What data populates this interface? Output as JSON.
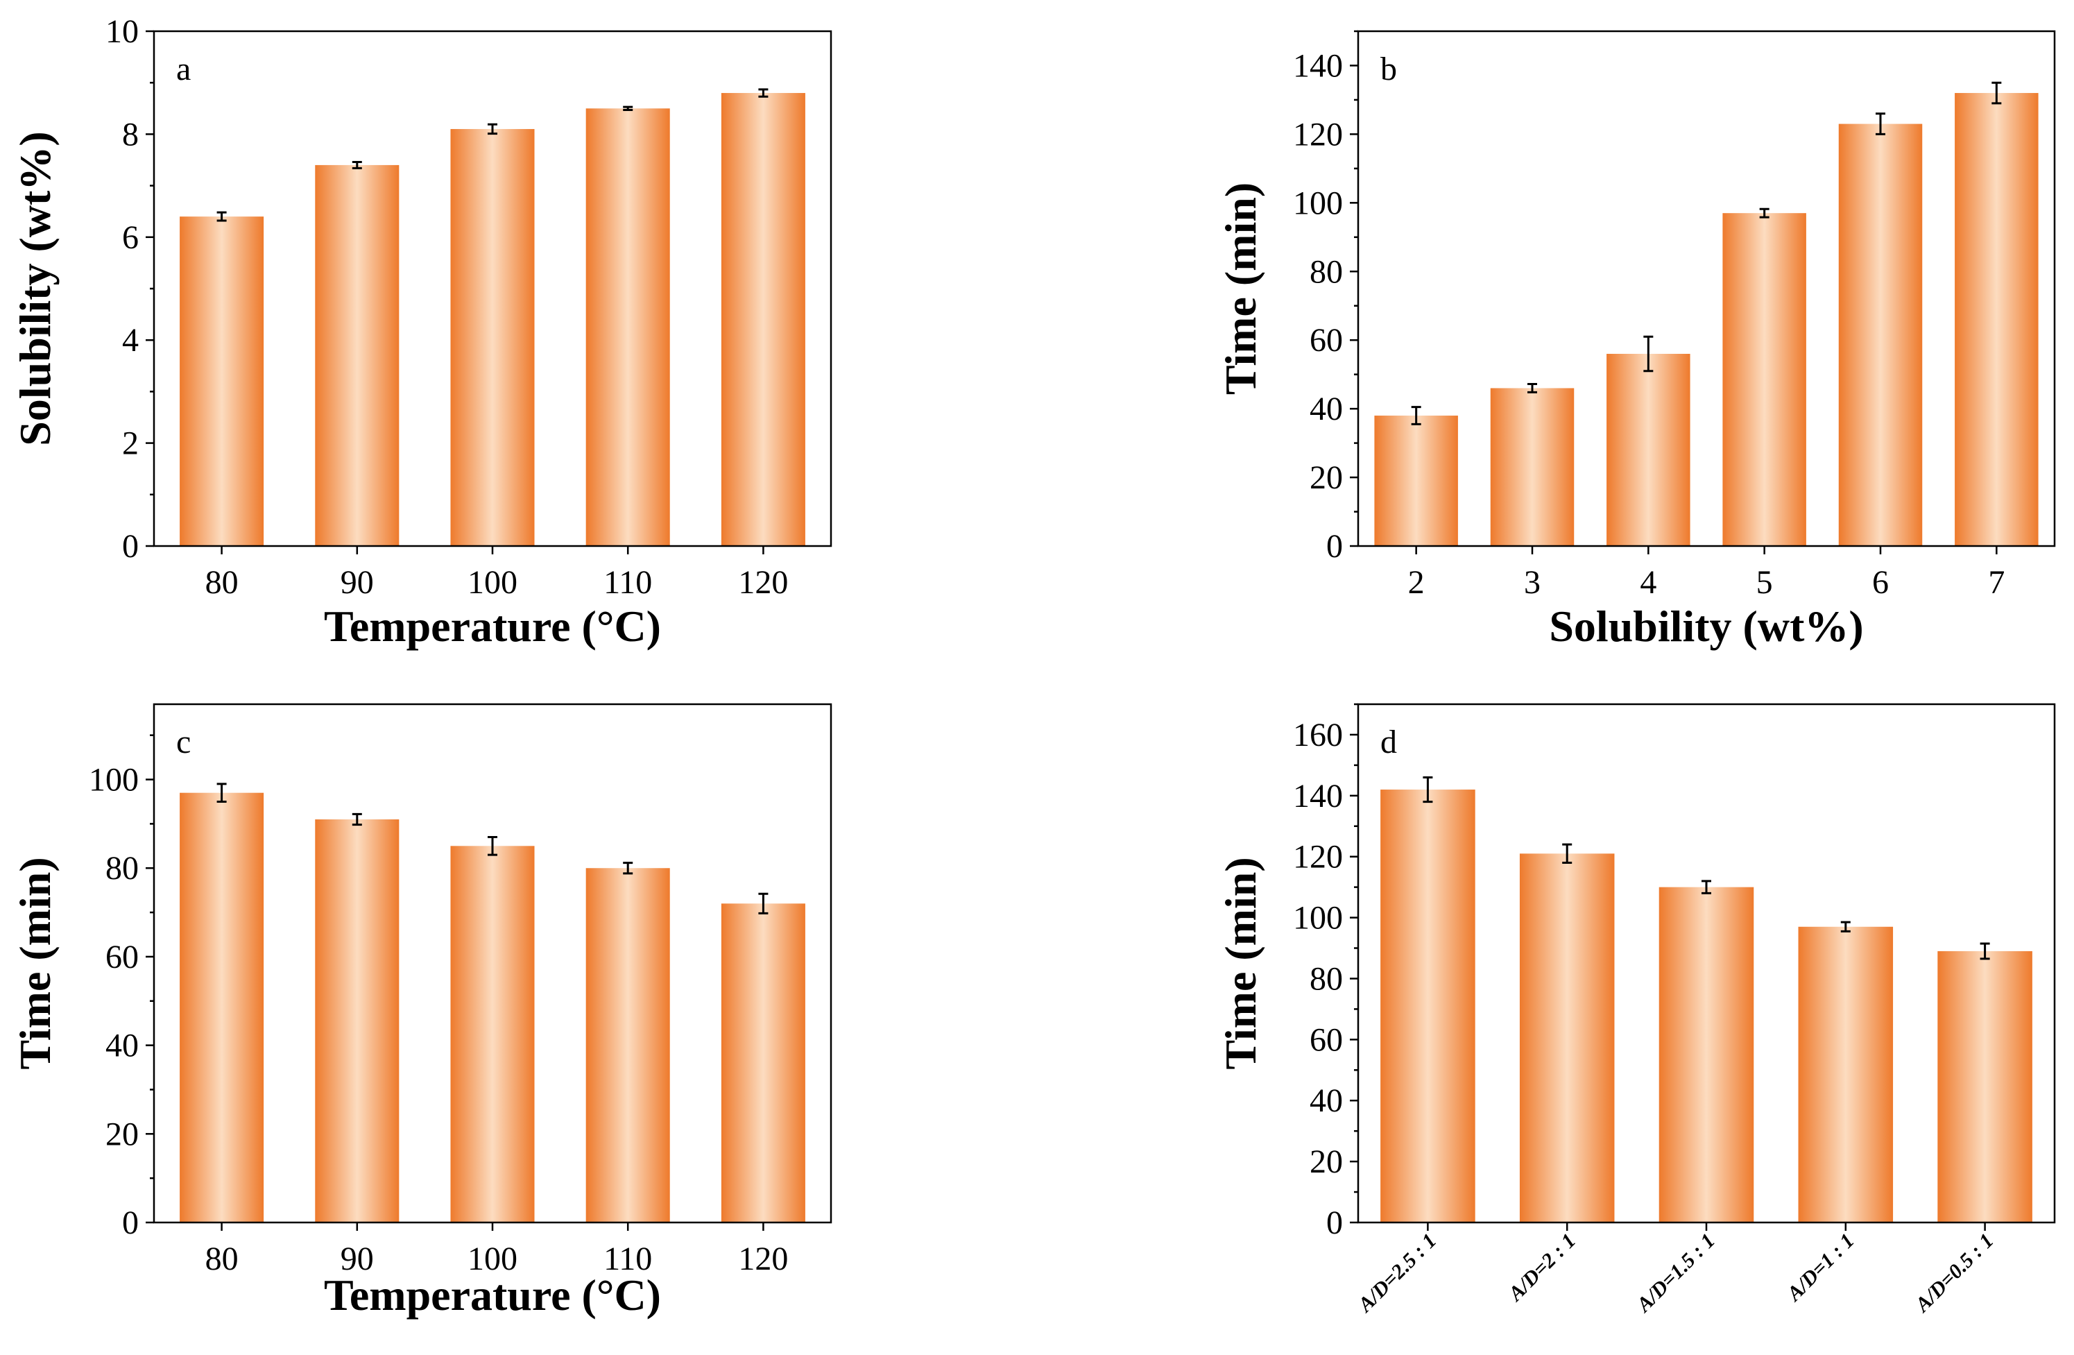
{
  "colors": {
    "bar_edge": "#ee7a2c",
    "bar_center": "#fcdcc0",
    "axis": "#000000"
  },
  "chart_data": [
    {
      "panel": "a",
      "type": "bar",
      "title": "",
      "xlabel": "Temperature (°C)",
      "ylabel": "Solubility (wt%)",
      "categories": [
        "80",
        "90",
        "100",
        "110",
        "120"
      ],
      "values": [
        6.4,
        7.4,
        8.1,
        8.5,
        8.8
      ],
      "errors": [
        0.08,
        0.06,
        0.09,
        0.03,
        0.07
      ],
      "ylim": [
        0,
        10
      ],
      "yticks": [
        0,
        2,
        4,
        6,
        8,
        10
      ],
      "yticks_display": [
        "0",
        "2",
        "4",
        "6",
        "8",
        "10"
      ],
      "grid": false
    },
    {
      "panel": "b",
      "type": "bar",
      "title": "",
      "xlabel": "Solubility (wt%)",
      "ylabel": "Time (min)",
      "categories": [
        "2",
        "3",
        "4",
        "5",
        "6",
        "7"
      ],
      "values": [
        38,
        46,
        56,
        97,
        123,
        132
      ],
      "errors": [
        2.5,
        1.2,
        5,
        1.2,
        3,
        3
      ],
      "ylim": [
        0,
        150
      ],
      "yticks": [
        0,
        20,
        40,
        60,
        80,
        100,
        120,
        140
      ],
      "yticks_display": [
        "0",
        "20",
        "40",
        "60",
        "80",
        "100",
        "120",
        "140"
      ],
      "grid": false
    },
    {
      "panel": "c",
      "type": "bar",
      "title": "",
      "xlabel": "Temperature (°C)",
      "ylabel": "Time (min)",
      "categories": [
        "80",
        "90",
        "100",
        "110",
        "120"
      ],
      "values": [
        97,
        91,
        85,
        80,
        72
      ],
      "errors": [
        2,
        1.2,
        2,
        1.2,
        2.2
      ],
      "ylim": [
        0,
        117
      ],
      "yticks": [
        0,
        20,
        40,
        60,
        80,
        100
      ],
      "yticks_display": [
        "0",
        "20",
        "40",
        "60",
        "80",
        "100"
      ],
      "grid": false
    },
    {
      "panel": "d",
      "type": "bar",
      "title": "",
      "xlabel": "",
      "ylabel": "Time (min)",
      "categories": [
        "A/D=2.5 : 1",
        "A/D=2 : 1",
        "A/D=1.5 : 1",
        "A/D=1 : 1",
        "A/D=0.5 : 1"
      ],
      "values": [
        142,
        121,
        110,
        97,
        89
      ],
      "errors": [
        4,
        3,
        2,
        1.5,
        2.5
      ],
      "ylim": [
        0,
        170
      ],
      "yticks": [
        0,
        20,
        40,
        60,
        80,
        100,
        120,
        140,
        160
      ],
      "yticks_display": [
        "0",
        "20",
        "40",
        "60",
        "80",
        "100",
        "120",
        "140",
        "160"
      ],
      "grid": false
    }
  ]
}
